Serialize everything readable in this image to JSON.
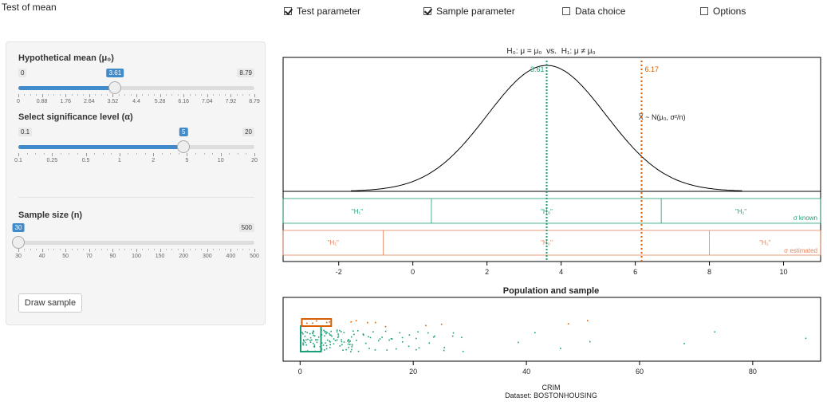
{
  "app": {
    "title": "Test of mean"
  },
  "top_options": [
    {
      "label": "Test parameter",
      "checked": true
    },
    {
      "label": "Sample parameter",
      "checked": true
    },
    {
      "label": "Data choice",
      "checked": false
    },
    {
      "label": "Options",
      "checked": false
    }
  ],
  "sidebar": {
    "mean_slider": {
      "label": "Hypothetical mean (μ₀)",
      "min": "0",
      "max": "8.79",
      "value": "3.61",
      "fraction": 0.41,
      "ticks": [
        "0",
        "0.88",
        "1.76",
        "2.64",
        "3.52",
        "4.4",
        "5.28",
        "6.16",
        "7.04",
        "7.92",
        "8.79"
      ]
    },
    "alpha_slider": {
      "label": "Select significance level (α)",
      "min": "0.1",
      "max": "20",
      "value": "5",
      "fraction": 0.7,
      "ticks": [
        "0.1",
        "0.25",
        "0.5",
        "1",
        "2",
        "5",
        "10",
        "20"
      ]
    },
    "n_slider": {
      "label": "Sample size (n)",
      "min": "30",
      "max": "500",
      "value": "30",
      "fraction": 0.0,
      "ticks": [
        "30",
        "40",
        "50",
        "70",
        "90",
        "100",
        "150",
        "200",
        "300",
        "400",
        "500"
      ]
    },
    "draw_button": "Draw sample"
  },
  "top_chart": {
    "title_h0": "H₀: μ = μ₀",
    "title_vs": "vs.",
    "title_h1": "H₁: μ ≠ μ₀",
    "dist_label": "X̅ ~ N(μ₀, σ²/n)",
    "mu0_label": "3.61",
    "sample_mean_label": "6.17",
    "known_left": "\"H₁\"",
    "known_mid": "\"H₀\"",
    "known_right": "\"H₁\"",
    "known_tag": "σ known",
    "est_left": "\"H₁\"",
    "est_mid": "\"H₀\"",
    "est_right": "\"H₁\"",
    "est_tag": "σ estimated",
    "xticks": [
      "-2",
      "0",
      "2",
      "4",
      "6",
      "8",
      "10"
    ]
  },
  "bottom_chart": {
    "title": "Population and sample",
    "xticks": [
      "0",
      "20",
      "40",
      "60",
      "80"
    ],
    "xlabel": "CRIM",
    "dataset": "Dataset: BOSTONHOUSING"
  },
  "colors": {
    "green": "#1b9e77",
    "orange": "#d95f02",
    "blue": "#428bca"
  },
  "chart_data": [
    {
      "type": "line",
      "series": [
        {
          "name": "",
          "mean": 3.61,
          "sd": 1.6
        }
      ],
      "x_range": [
        -3.5,
        11
      ],
      "mu0": 3.61,
      "sample_mean": 6.17,
      "acceptance_known": [
        0.5,
        6.7
      ],
      "acceptance_estimated": [
        -0.8,
        8.0
      ]
    },
    {
      "type": "scatter",
      "x_range": [
        -3,
        92
      ],
      "population_row": [
        0.5,
        0.8,
        1.2,
        1.9,
        2.3,
        2.7,
        3.3,
        3.8,
        4.4,
        4.9,
        5.5,
        6.2,
        6.8,
        7.3,
        8.1,
        8.8,
        9.4,
        10.2,
        10.9,
        11.6,
        12.4,
        13.1,
        14.0,
        14.8,
        15.6,
        16.4,
        17.3,
        18.2,
        19.1,
        20.0,
        21.0,
        22.3,
        23.8,
        25.2,
        26.8,
        28.6,
        38.4,
        41.5,
        45.7,
        51.1,
        67.9,
        73.5,
        88.9
      ],
      "sample_row": [
        0.2,
        0.6,
        1.1,
        1.6,
        2.1,
        2.8,
        3.5,
        4.6,
        5.1,
        8.9,
        9.8,
        11.8,
        13.2,
        15.0,
        22.1,
        24.9,
        47.3,
        50.7
      ]
    }
  ]
}
